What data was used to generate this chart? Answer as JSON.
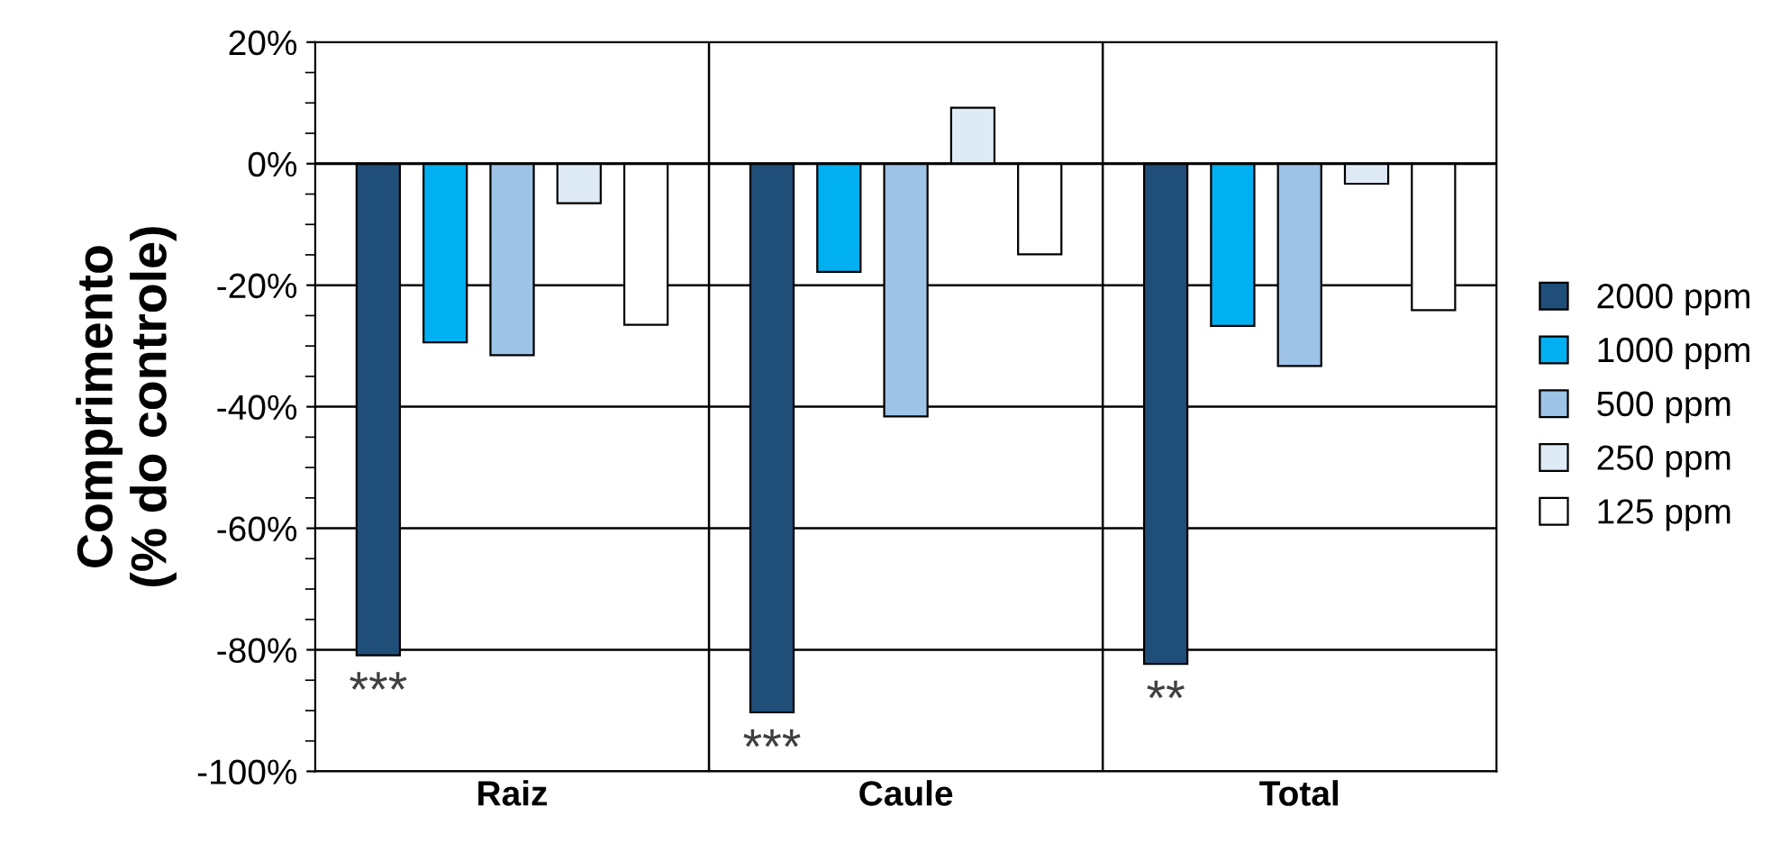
{
  "chart_data": {
    "type": "bar",
    "ylabel": "Comprimento\n(% do controle)",
    "categories": [
      "Raiz",
      "Caule",
      "Total"
    ],
    "series": [
      {
        "name": "2000 ppm",
        "color": "#1f4e79",
        "values": [
          -80.9,
          -90.3,
          -82.3
        ]
      },
      {
        "name": "1000 ppm",
        "color": "#00b0f0",
        "values": [
          -29.4,
          -17.8,
          -26.7
        ]
      },
      {
        "name": "500 ppm",
        "color": "#9dc3e6",
        "values": [
          -31.5,
          -41.6,
          -33.3
        ]
      },
      {
        "name": "250 ppm",
        "color": "#deebf7",
        "values": [
          -6.5,
          9.2,
          -3.3
        ]
      },
      {
        "name": "125 ppm",
        "color": "#ffffff",
        "values": [
          -26.5,
          -14.9,
          -24.1
        ]
      }
    ],
    "ylim": [
      -100,
      20
    ],
    "yticks": [
      {
        "value": -100,
        "label": "-100%"
      },
      {
        "value": -80,
        "label": "-80%"
      },
      {
        "value": -60,
        "label": "-60%"
      },
      {
        "value": -40,
        "label": "-40%"
      },
      {
        "value": -20,
        "label": "-20%"
      },
      {
        "value": 0,
        "label": "0%"
      },
      {
        "value": 20,
        "label": "20%"
      }
    ],
    "annotations": [
      "***",
      "***",
      "**"
    ],
    "grid": true,
    "legend": "right"
  }
}
